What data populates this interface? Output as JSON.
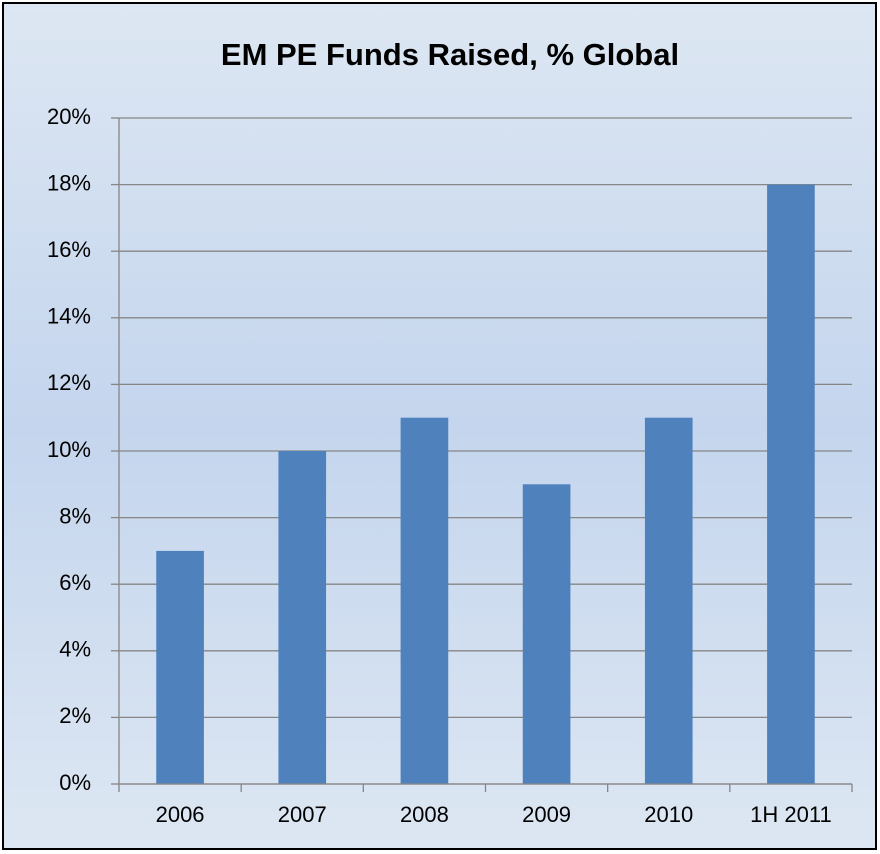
{
  "chart_data": {
    "type": "bar",
    "title": "EM PE Funds Raised, % Global",
    "categories": [
      "2006",
      "2007",
      "2008",
      "2009",
      "2010",
      "1H 2011"
    ],
    "values": [
      7,
      10,
      11,
      9,
      11,
      18
    ],
    "color": "#4f81bd",
    "ylim": [
      0,
      20
    ],
    "yticks": [
      {
        "value": 0,
        "label": "0%"
      },
      {
        "value": 2,
        "label": "2%"
      },
      {
        "value": 4,
        "label": "4%"
      },
      {
        "value": 6,
        "label": "6%"
      },
      {
        "value": 8,
        "label": "8%"
      },
      {
        "value": 10,
        "label": "10%"
      },
      {
        "value": 12,
        "label": "12%"
      },
      {
        "value": 14,
        "label": "14%"
      },
      {
        "value": 16,
        "label": "16%"
      },
      {
        "value": 18,
        "label": "18%"
      },
      {
        "value": 20,
        "label": "20%"
      }
    ],
    "grid": true
  }
}
